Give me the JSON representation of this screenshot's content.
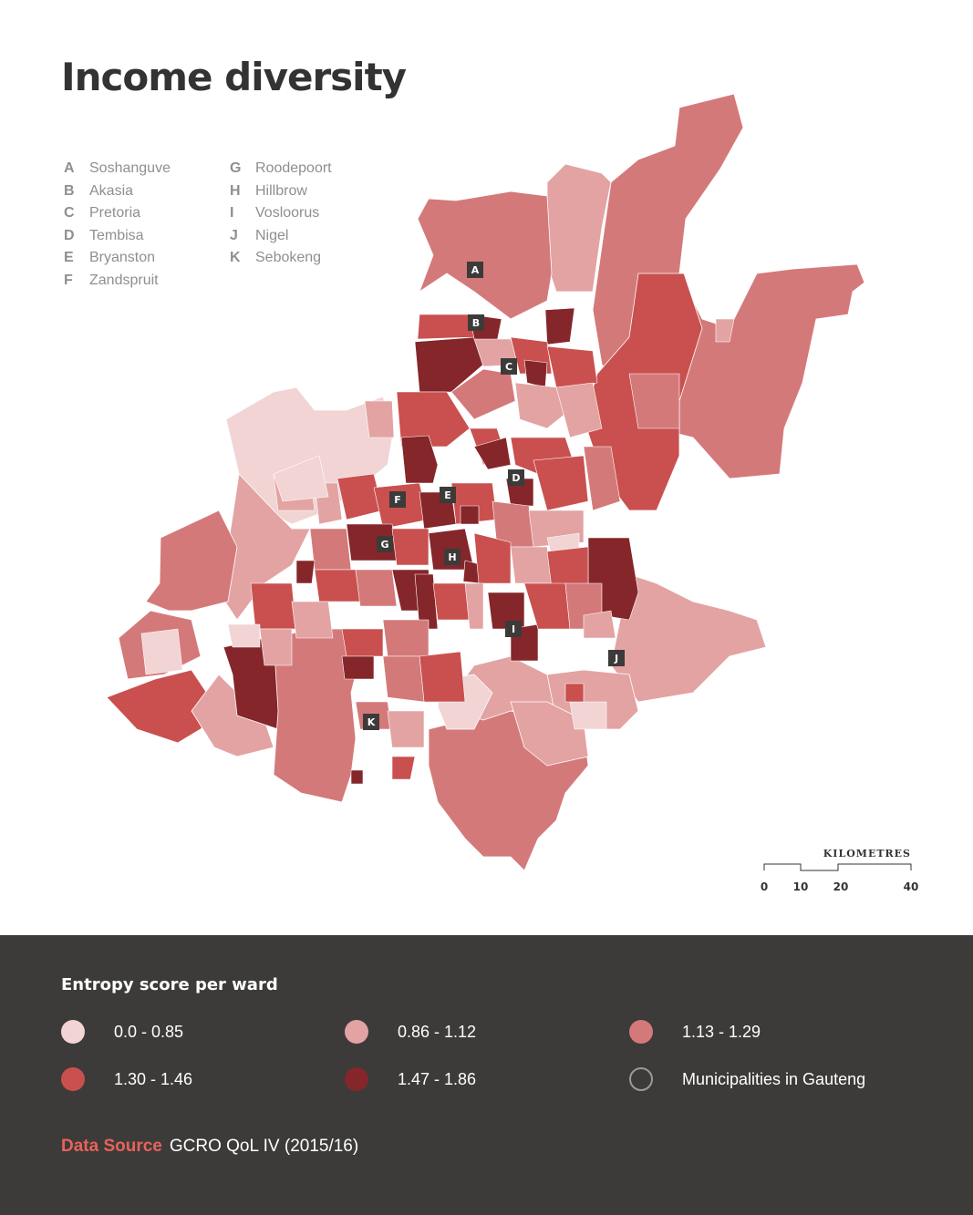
{
  "title": "Income diversity",
  "places": [
    {
      "code": "A",
      "name": "Soshanguve"
    },
    {
      "code": "B",
      "name": "Akasia"
    },
    {
      "code": "C",
      "name": "Pretoria"
    },
    {
      "code": "D",
      "name": "Tembisa"
    },
    {
      "code": "E",
      "name": "Bryanston"
    },
    {
      "code": "F",
      "name": "Zandspruit"
    },
    {
      "code": "G",
      "name": "Roodepoort"
    },
    {
      "code": "H",
      "name": "Hillbrow"
    },
    {
      "code": "I",
      "name": "Vosloorus"
    },
    {
      "code": "J",
      "name": "Nigel"
    },
    {
      "code": "K",
      "name": "Sebokeng"
    }
  ],
  "scale": {
    "label": "KILOMETRES",
    "ticks": [
      "0",
      "10",
      "20",
      "40"
    ]
  },
  "legend": {
    "title": "Entropy score per ward",
    "items": [
      {
        "label": "0.0 - 0.85",
        "color": "#f2d4d4"
      },
      {
        "label": "0.86 - 1.12",
        "color": "#e3a3a3"
      },
      {
        "label": "1.13 - 1.29",
        "color": "#d4797a"
      },
      {
        "label": "1.30 - 1.46",
        "color": "#c9504f"
      },
      {
        "label": "1.47 - 1.86",
        "color": "#84262a"
      },
      {
        "label": "Municipalities in Gauteng",
        "color": "none",
        "outline": "#9a9a9a"
      }
    ]
  },
  "source": {
    "label": "Data Source",
    "value": "GCRO QoL IV (2015/16)"
  }
}
